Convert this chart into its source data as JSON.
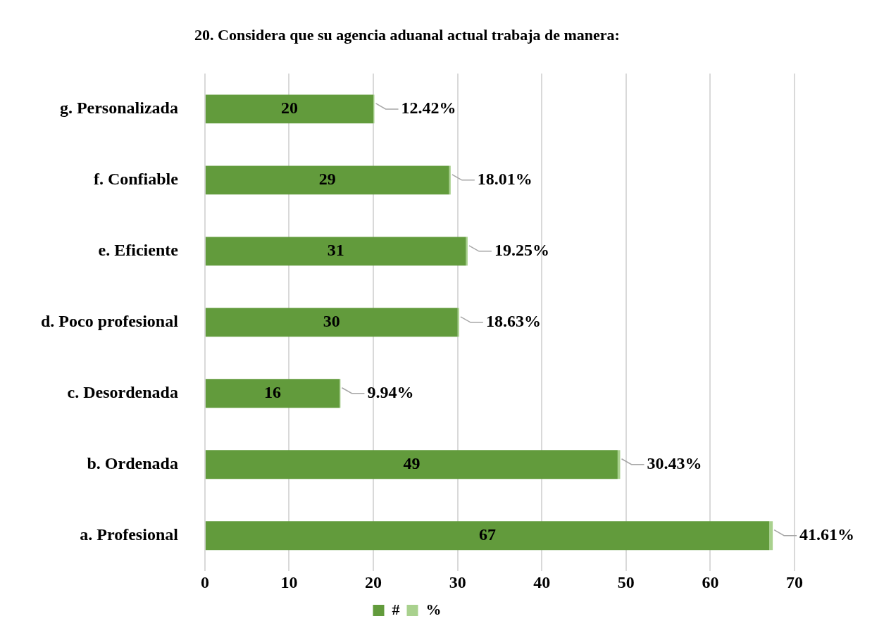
{
  "chart_data": {
    "type": "bar",
    "orientation": "horizontal",
    "stacked": true,
    "title": "20. Considera que su agencia aduanal actual trabaja de manera:",
    "categories": [
      "g. Personalizada",
      "f. Confiable",
      "e. Eficiente",
      "d. Poco profesional",
      "c. Desordenada",
      "b. Ordenada",
      "a. Profesional"
    ],
    "series": [
      {
        "name": "#",
        "color": "#629b3c",
        "values": [
          20,
          29,
          31,
          30,
          16,
          49,
          67
        ],
        "value_labels": [
          "20",
          "29",
          "31",
          "30",
          "16",
          "49",
          "67"
        ]
      },
      {
        "name": "%",
        "color": "#a9d18e",
        "values": [
          0.1242,
          0.1801,
          0.1925,
          0.1863,
          0.0994,
          0.3043,
          0.4161
        ],
        "value_labels": [
          "12.42%",
          "18.01%",
          "19.25%",
          "18.63%",
          "9.94%",
          "30.43%",
          "41.61%"
        ]
      }
    ],
    "xlim": [
      0,
      70
    ],
    "xticks": [
      0,
      10,
      20,
      30,
      40,
      50,
      60,
      70
    ],
    "grid": "x",
    "legend": "bottom"
  }
}
